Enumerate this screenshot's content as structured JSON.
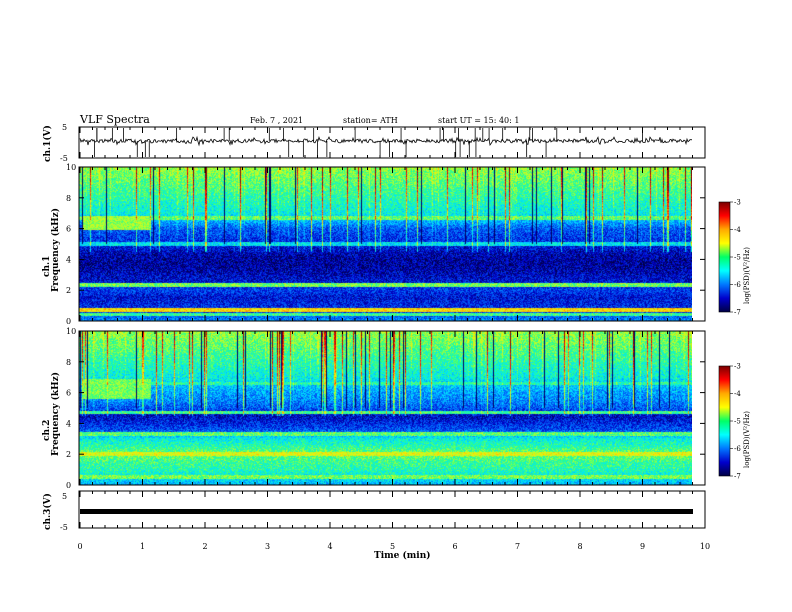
{
  "header": {
    "title": "VLF Spectra",
    "date": "Feb. 7 , 2021",
    "station": "station= ATH",
    "start": "start  UT =   15: 40: 1"
  },
  "colorbar": {
    "label": "log(PSD)(V²/Hz)",
    "ticks": [
      "-3",
      "-4",
      "-5",
      "-6",
      "-7"
    ],
    "colors": [
      "#7a0000",
      "#ff0000",
      "#ffaa00",
      "#ffff00",
      "#00ff66",
      "#00ffff",
      "#0077ff",
      "#0000cc",
      "#000044"
    ]
  },
  "chart_data": [
    {
      "type": "line",
      "name": "waveform-ch1",
      "ylabel": "ch.1(V)",
      "yticks": [
        "5",
        "-5"
      ],
      "ylim": [
        -5,
        5
      ],
      "xlim": [
        0,
        10
      ],
      "baseline": 0.5,
      "noise_amplitude": 0.6,
      "spike_count": 40
    },
    {
      "type": "heatmap",
      "name": "spectrogram-ch1",
      "ylabel_channel": "ch.1",
      "ylabel": "Frequency  (kHz)",
      "yticks": [
        "0",
        "2",
        "4",
        "6",
        "8",
        "10"
      ],
      "ylim": [
        0,
        10
      ],
      "xlim": [
        0,
        9.85
      ],
      "zlim": [
        -7,
        -3
      ],
      "freq_profile_khz": [
        0,
        0.5,
        1,
        1.5,
        2,
        2.5,
        3,
        3.5,
        4,
        4.5,
        5,
        5.5,
        6,
        6.5,
        7,
        7.5,
        8,
        8.5,
        9,
        9.5,
        10
      ],
      "freq_profile_logpsd": [
        -6.0,
        -6.3,
        -6.4,
        -6.5,
        -6.3,
        -6.5,
        -6.6,
        -6.7,
        -6.7,
        -6.6,
        -6.4,
        -6.3,
        -6.2,
        -5.8,
        -5.5,
        -5.4,
        -5.3,
        -5.2,
        -5.1,
        -5.0,
        -4.9
      ],
      "bands_khz": [
        [
          0.7,
          -4.4
        ],
        [
          2.3,
          -5.0
        ],
        [
          5.0,
          -5.6
        ],
        [
          6.7,
          -5.1
        ],
        [
          0.4,
          -5.2
        ]
      ],
      "features": [
        {
          "t_start": 0.05,
          "t_end": 1.15,
          "f_low": 5.9,
          "f_high": 6.8,
          "logpsd": -4.9
        }
      ]
    },
    {
      "type": "heatmap",
      "name": "spectrogram-ch2",
      "ylabel_channel": "ch.2",
      "ylabel": "Frequency  (kHz)",
      "yticks": [
        "0",
        "2",
        "4",
        "6",
        "8",
        "10"
      ],
      "ylim": [
        0,
        10
      ],
      "xlim": [
        0,
        9.85
      ],
      "zlim": [
        -7,
        -3
      ],
      "freq_profile_khz": [
        0,
        0.5,
        1,
        1.5,
        2,
        2.5,
        3,
        3.5,
        4,
        4.5,
        5,
        5.5,
        6,
        6.5,
        7,
        7.5,
        8,
        8.5,
        9,
        9.5,
        10
      ],
      "freq_profile_logpsd": [
        -5.8,
        -5.5,
        -5.3,
        -5.2,
        -5.0,
        -5.3,
        -5.5,
        -6.2,
        -6.4,
        -6.6,
        -6.2,
        -6.0,
        -5.9,
        -5.7,
        -5.5,
        -5.4,
        -5.3,
        -5.2,
        -5.1,
        -5.0,
        -4.9
      ],
      "bands_khz": [
        [
          2.0,
          -4.6
        ],
        [
          3.3,
          -5.1
        ],
        [
          4.7,
          -5.2
        ],
        [
          6.6,
          -5.3
        ],
        [
          0.5,
          -5.0
        ]
      ],
      "features": [
        {
          "t_start": 0.05,
          "t_end": 1.15,
          "f_low": 5.6,
          "f_high": 6.9,
          "logpsd": -5.0
        }
      ]
    },
    {
      "type": "line",
      "name": "waveform-ch3",
      "ylabel": "ch.3(V)",
      "yticks": [
        "5",
        "-5"
      ],
      "ylim": [
        -5,
        5
      ],
      "xlim": [
        0,
        10
      ],
      "baseline": 0.0,
      "noise_amplitude": 0.0,
      "spike_count": 0
    }
  ],
  "xaxis": {
    "label": "Time  (min)",
    "ticks": [
      "0",
      "1",
      "2",
      "3",
      "4",
      "5",
      "6",
      "7",
      "8",
      "9",
      "10"
    ],
    "range": [
      0,
      10
    ]
  }
}
